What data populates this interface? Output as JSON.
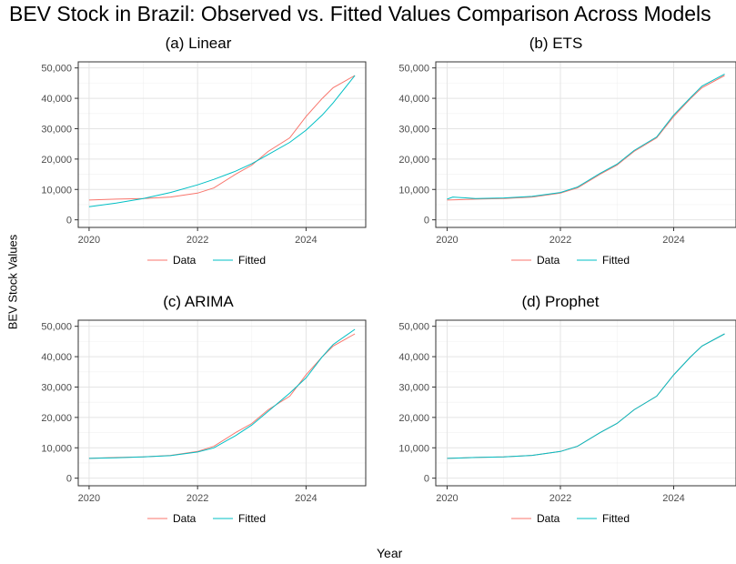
{
  "figure": {
    "title": "BEV Stock in Brazil: Observed vs. Fitted Values Comparison Across Models",
    "ylabel": "BEV Stock Values",
    "xlabel": "Year"
  },
  "colors": {
    "data": "#F8766D",
    "fitted": "#00BFC4"
  },
  "chart_data": [
    {
      "type": "line",
      "title": "(a) Linear",
      "xlim": [
        2019.8,
        2025.1
      ],
      "ylim": [
        -2500,
        52000
      ],
      "yticks": [
        0,
        10000,
        20000,
        30000,
        40000,
        50000
      ],
      "ytick_labels": [
        "0",
        "10,000",
        "20,000",
        "30,000",
        "40,000",
        "50,000"
      ],
      "xticks": [
        2020,
        2022,
        2024
      ],
      "xtick_labels": [
        "2020",
        "2022",
        "2024"
      ],
      "legend": "bottom",
      "grid": true,
      "series": [
        {
          "name": "Data",
          "x": [
            2020.0,
            2020.5,
            2021.0,
            2021.5,
            2022.0,
            2022.3,
            2022.7,
            2023.0,
            2023.3,
            2023.7,
            2024.0,
            2024.3,
            2024.5,
            2024.9
          ],
          "y": [
            6500,
            6800,
            7000,
            7500,
            8800,
            10500,
            15000,
            18000,
            22500,
            27000,
            34000,
            40000,
            43500,
            47500
          ]
        },
        {
          "name": "Fitted",
          "x": [
            2020.0,
            2020.5,
            2021.0,
            2021.5,
            2022.0,
            2022.3,
            2022.7,
            2023.0,
            2023.3,
            2023.7,
            2024.0,
            2024.3,
            2024.5,
            2024.9
          ],
          "y": [
            4300,
            5500,
            7000,
            9000,
            11500,
            13300,
            16000,
            18500,
            21500,
            25500,
            29500,
            34500,
            38500,
            47500
          ]
        }
      ]
    },
    {
      "type": "line",
      "title": "(b) ETS",
      "xlim": [
        2019.8,
        2025.1
      ],
      "ylim": [
        -2500,
        52000
      ],
      "yticks": [
        0,
        10000,
        20000,
        30000,
        40000,
        50000
      ],
      "ytick_labels": [
        "0",
        "10,000",
        "20,000",
        "30,000",
        "40,000",
        "50,000"
      ],
      "xticks": [
        2020,
        2022,
        2024
      ],
      "xtick_labels": [
        "2020",
        "2022",
        "2024"
      ],
      "legend": "bottom",
      "grid": true,
      "series": [
        {
          "name": "Data",
          "x": [
            2020.0,
            2020.5,
            2021.0,
            2021.5,
            2022.0,
            2022.3,
            2022.7,
            2023.0,
            2023.3,
            2023.7,
            2024.0,
            2024.3,
            2024.5,
            2024.9
          ],
          "y": [
            6500,
            6800,
            7000,
            7500,
            8800,
            10500,
            15000,
            18000,
            22500,
            27000,
            34000,
            40000,
            43500,
            47500
          ]
        },
        {
          "name": "Fitted",
          "x": [
            2020.0,
            2020.1,
            2020.5,
            2021.0,
            2021.5,
            2022.0,
            2022.3,
            2022.7,
            2023.0,
            2023.3,
            2023.7,
            2024.0,
            2024.3,
            2024.5,
            2024.9
          ],
          "y": [
            6800,
            7500,
            7000,
            7200,
            7700,
            9000,
            10800,
            15300,
            18300,
            22800,
            27300,
            34500,
            40300,
            44000,
            48000
          ]
        }
      ]
    },
    {
      "type": "line",
      "title": "(c) ARIMA",
      "xlim": [
        2019.8,
        2025.1
      ],
      "ylim": [
        -2500,
        52000
      ],
      "yticks": [
        0,
        10000,
        20000,
        30000,
        40000,
        50000
      ],
      "ytick_labels": [
        "0",
        "10,000",
        "20,000",
        "30,000",
        "40,000",
        "50,000"
      ],
      "xticks": [
        2020,
        2022,
        2024
      ],
      "xtick_labels": [
        "2020",
        "2022",
        "2024"
      ],
      "legend": "bottom",
      "grid": true,
      "series": [
        {
          "name": "Data",
          "x": [
            2020.0,
            2020.5,
            2021.0,
            2021.5,
            2022.0,
            2022.3,
            2022.7,
            2023.0,
            2023.3,
            2023.7,
            2024.0,
            2024.3,
            2024.5,
            2024.9
          ],
          "y": [
            6500,
            6800,
            7000,
            7500,
            8800,
            10500,
            15000,
            18000,
            22500,
            27000,
            34000,
            40000,
            43500,
            47500
          ]
        },
        {
          "name": "Fitted",
          "x": [
            2020.0,
            2020.5,
            2021.0,
            2021.5,
            2022.0,
            2022.3,
            2022.7,
            2023.0,
            2023.3,
            2023.7,
            2024.0,
            2024.3,
            2024.5,
            2024.9
          ],
          "y": [
            6500,
            6700,
            7000,
            7400,
            8600,
            10000,
            14000,
            17500,
            22000,
            28000,
            33000,
            40000,
            44000,
            49000
          ]
        }
      ]
    },
    {
      "type": "line",
      "title": "(d) Prophet",
      "xlim": [
        2019.8,
        2025.1
      ],
      "ylim": [
        -2500,
        52000
      ],
      "yticks": [
        0,
        10000,
        20000,
        30000,
        40000,
        50000
      ],
      "ytick_labels": [
        "0",
        "10,000",
        "20,000",
        "30,000",
        "40,000",
        "50,000"
      ],
      "xticks": [
        2020,
        2022,
        2024
      ],
      "xtick_labels": [
        "2020",
        "2022",
        "2024"
      ],
      "legend": "bottom",
      "grid": true,
      "series": [
        {
          "name": "Data",
          "x": [
            2020.0,
            2020.5,
            2021.0,
            2021.5,
            2022.0,
            2022.3,
            2022.7,
            2023.0,
            2023.3,
            2023.7,
            2024.0,
            2024.3,
            2024.5,
            2024.9
          ],
          "y": [
            6500,
            6800,
            7000,
            7500,
            8800,
            10500,
            15000,
            18000,
            22500,
            27000,
            34000,
            40000,
            43500,
            47500
          ]
        },
        {
          "name": "Fitted",
          "x": [
            2020.0,
            2020.5,
            2021.0,
            2021.5,
            2022.0,
            2022.3,
            2022.7,
            2023.0,
            2023.3,
            2023.7,
            2024.0,
            2024.3,
            2024.5,
            2024.9
          ],
          "y": [
            6500,
            6800,
            7000,
            7500,
            8800,
            10500,
            15000,
            18000,
            22500,
            27000,
            34000,
            40000,
            43500,
            47500
          ]
        }
      ]
    }
  ]
}
